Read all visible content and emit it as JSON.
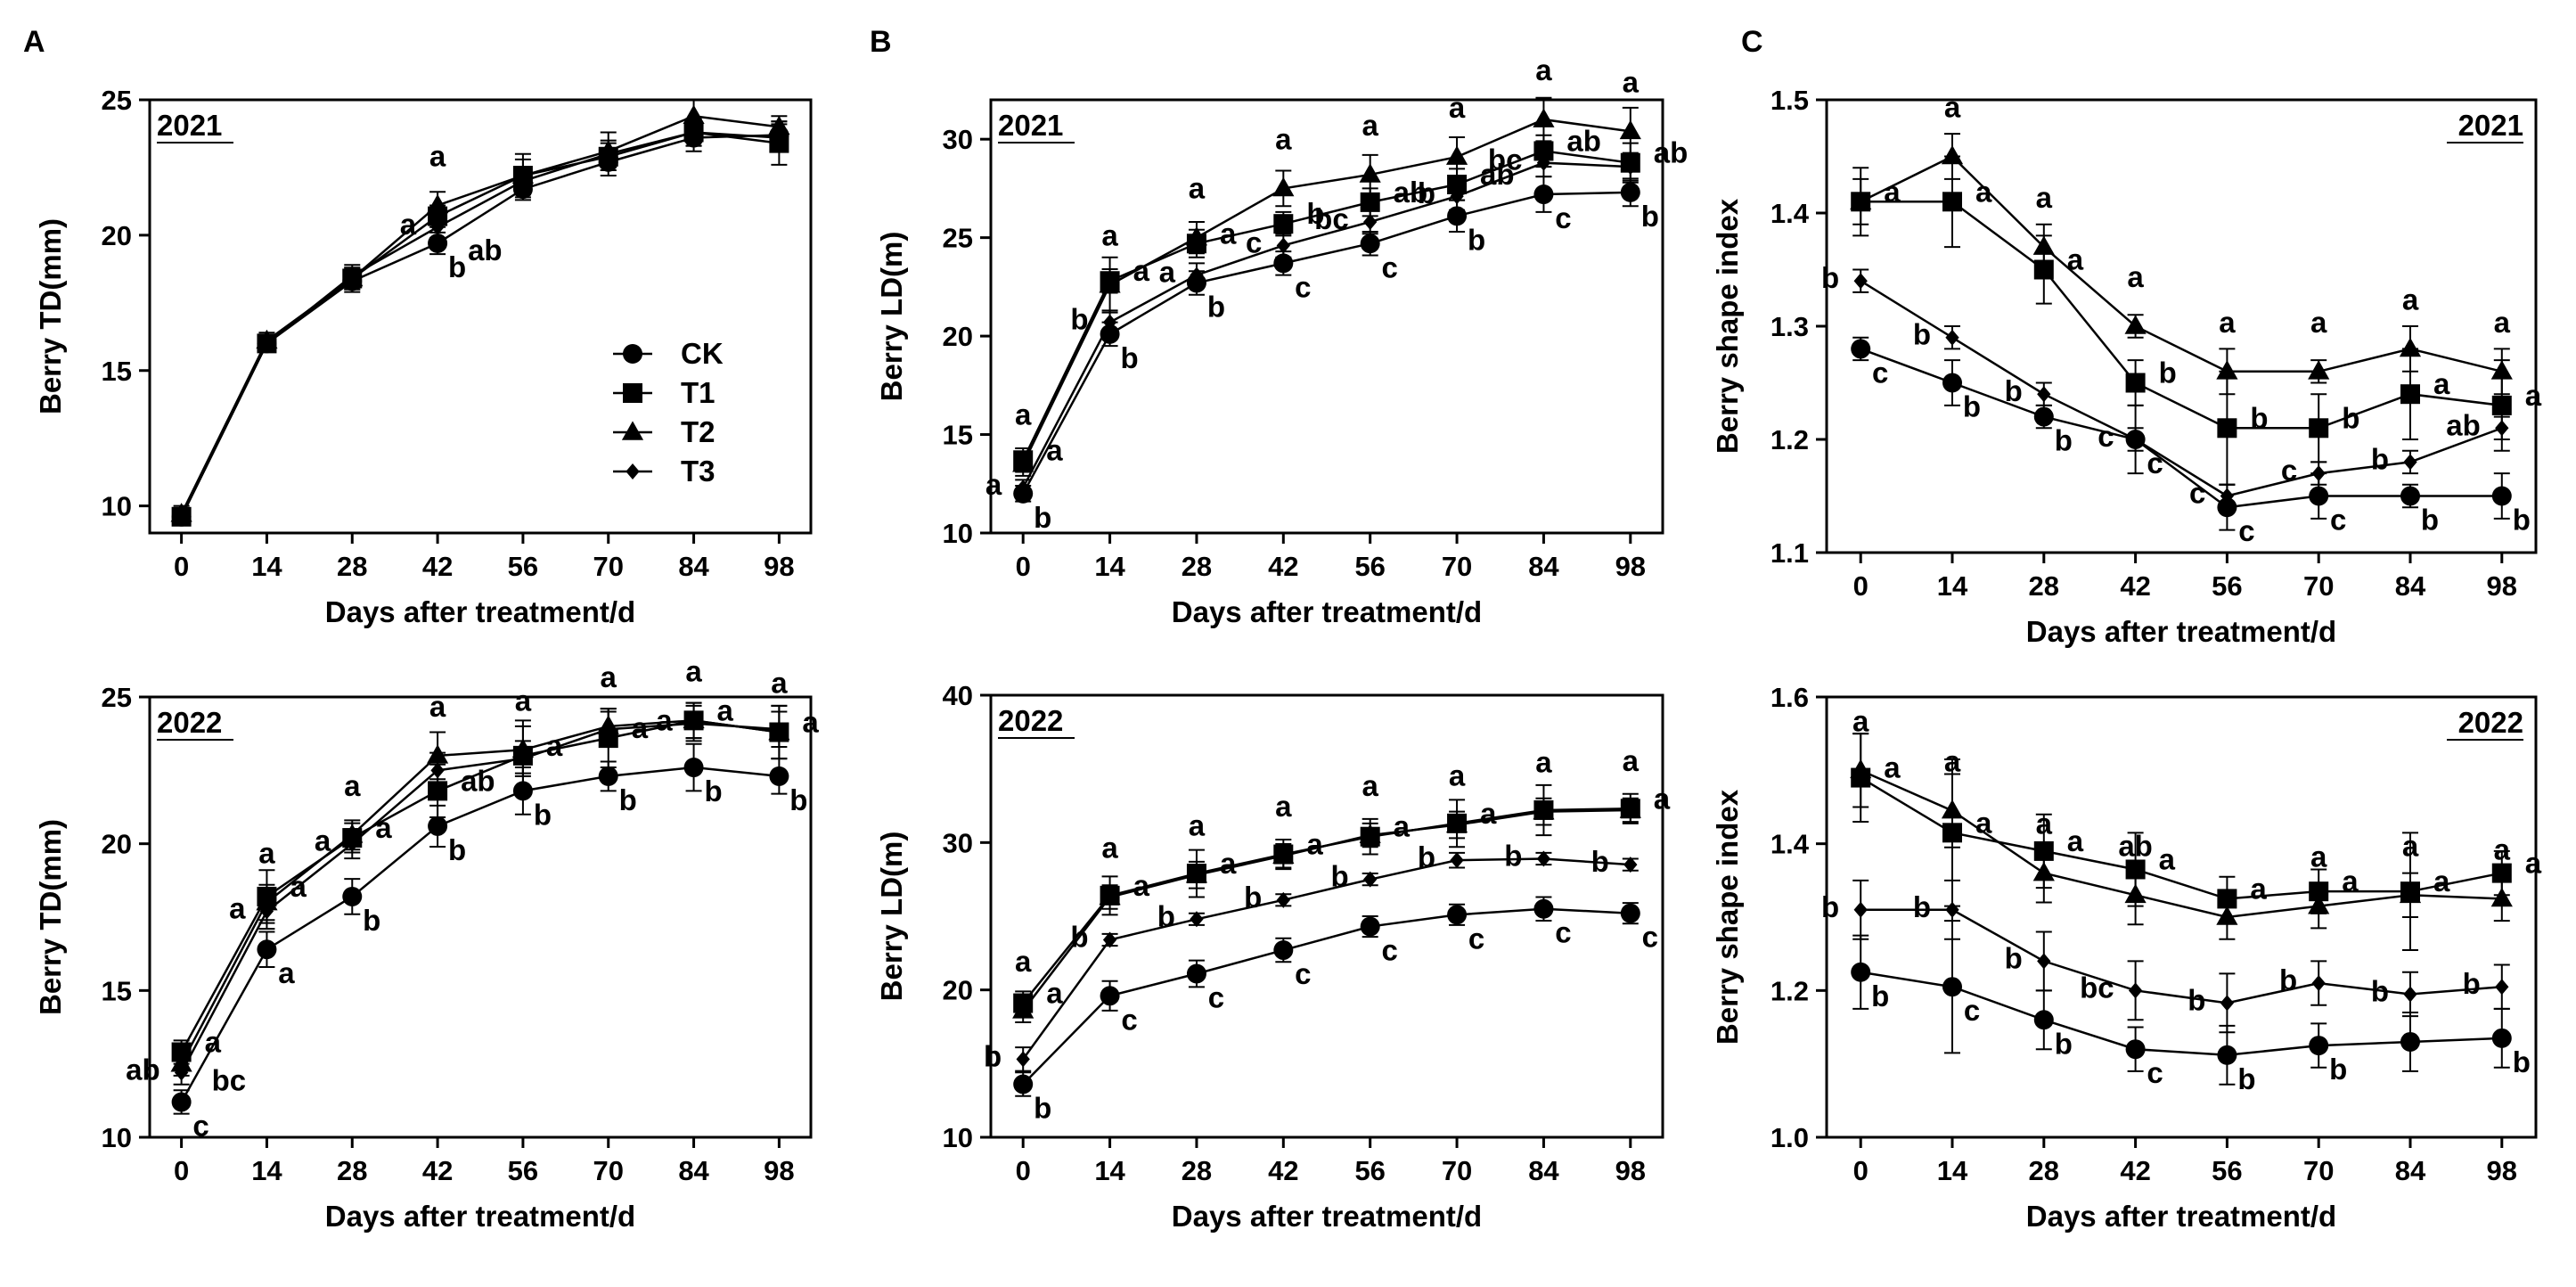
{
  "panel_labels": {
    "A": "A",
    "B": "B",
    "C": "C"
  },
  "legend": {
    "CK": {
      "label": "CK",
      "marker": "circle"
    },
    "T1": {
      "label": "T1",
      "marker": "square"
    },
    "T2": {
      "label": "T2",
      "marker": "triangle"
    },
    "T3": {
      "label": "T3",
      "marker": "diamond"
    }
  },
  "colors": {
    "ink": "#000000",
    "background": "#ffffff"
  },
  "chart_data": [
    {
      "id": "A2021",
      "panel": "A",
      "type": "line",
      "year_label": "2021",
      "xlabel": "Days after treatment/d",
      "ylabel": "Berry TD(mm)",
      "x": [
        0,
        14,
        28,
        42,
        56,
        70,
        84,
        98
      ],
      "ylim": [
        9,
        25
      ],
      "yticks": [
        10,
        15,
        20,
        25
      ],
      "show_legend": true,
      "legend_position": "center-right",
      "series": [
        {
          "name": "CK",
          "marker": "circle",
          "values": [
            9.6,
            16.0,
            18.3,
            19.7,
            21.7,
            22.7,
            23.6,
            23.7
          ],
          "errors": [
            0.3,
            0.3,
            0.4,
            0.4,
            0.4,
            0.5,
            0.5,
            0.5
          ],
          "letters": [
            "",
            "",
            "",
            "b",
            "",
            "",
            "",
            ""
          ]
        },
        {
          "name": "T1",
          "marker": "square",
          "values": [
            9.6,
            16.0,
            18.4,
            20.7,
            22.2,
            22.9,
            23.8,
            23.4
          ],
          "errors": [
            0.3,
            0.3,
            0.4,
            0.4,
            0.8,
            0.5,
            0.5,
            0.8
          ],
          "letters": [
            "",
            "",
            "",
            "",
            "",
            "",
            "",
            ""
          ]
        },
        {
          "name": "T2",
          "marker": "triangle",
          "values": [
            9.7,
            16.1,
            18.4,
            21.1,
            22.2,
            23.1,
            24.4,
            24.0
          ],
          "errors": [
            0.3,
            0.3,
            0.4,
            0.5,
            0.6,
            0.7,
            0.6,
            0.4
          ],
          "letters": [
            "",
            "",
            "",
            "a",
            "",
            "",
            "",
            ""
          ]
        },
        {
          "name": "T3",
          "marker": "diamond",
          "values": [
            9.6,
            16.0,
            18.5,
            20.3,
            22.0,
            23.0,
            23.8,
            23.6
          ],
          "errors": [
            0.3,
            0.3,
            0.4,
            0.4,
            0.5,
            0.5,
            0.5,
            0.5
          ],
          "letters": [
            "",
            "",
            "",
            "a",
            "",
            "",
            "",
            ""
          ]
        }
      ],
      "extra_labels": [
        {
          "text": "ab",
          "x": 42,
          "y": 19.4
        }
      ]
    },
    {
      "id": "A2022",
      "panel": "A",
      "type": "line",
      "year_label": "2022",
      "xlabel": "Days after treatment/d",
      "ylabel": "Berry TD(mm)",
      "x": [
        0,
        14,
        28,
        42,
        56,
        70,
        84,
        98
      ],
      "ylim": [
        10,
        25
      ],
      "yticks": [
        10,
        15,
        20,
        25
      ],
      "show_legend": false,
      "series": [
        {
          "name": "CK",
          "marker": "circle",
          "values": [
            11.2,
            16.4,
            18.2,
            20.6,
            21.8,
            22.3,
            22.6,
            22.3
          ],
          "errors": [
            0.4,
            0.6,
            0.6,
            0.7,
            0.8,
            0.5,
            0.8,
            0.6
          ],
          "letters": [
            "c",
            "a",
            "b",
            "b",
            "b",
            "b",
            "b",
            "b"
          ]
        },
        {
          "name": "T1",
          "marker": "square",
          "values": [
            12.9,
            18.2,
            20.2,
            21.8,
            23.0,
            23.6,
            24.2,
            23.8
          ],
          "errors": [
            0.4,
            0.9,
            0.5,
            0.9,
            1.2,
            1.0,
            0.6,
            0.9
          ],
          "letters": [
            "a",
            "a",
            "a",
            "ab",
            "a",
            "a",
            "a",
            "a"
          ]
        },
        {
          "name": "T2",
          "marker": "triangle",
          "values": [
            12.5,
            18.0,
            20.3,
            23.0,
            23.2,
            24.0,
            24.2,
            23.8
          ],
          "errors": [
            0.4,
            0.6,
            0.5,
            0.8,
            0.8,
            0.6,
            0.6,
            0.9
          ],
          "letters": [
            "",
            "a",
            "a",
            "a",
            "a",
            "a",
            "a",
            "a"
          ]
        },
        {
          "name": "T3",
          "marker": "diamond",
          "values": [
            12.2,
            17.7,
            20.0,
            22.5,
            22.9,
            23.9,
            24.1,
            23.9
          ],
          "errors": [
            0.4,
            0.6,
            0.5,
            0.6,
            0.6,
            0.6,
            0.6,
            0.6
          ],
          "letters": [
            "ab",
            "a",
            "a",
            "",
            "",
            "",
            "a",
            ""
          ]
        }
      ],
      "extra_labels": [
        {
          "text": "bc",
          "x": 0,
          "y": 11.9
        }
      ]
    },
    {
      "id": "B2021",
      "panel": "B",
      "type": "line",
      "year_label": "2021",
      "xlabel": "Days after treatment/d",
      "ylabel": "Berry LD(m)",
      "x": [
        0,
        14,
        28,
        42,
        56,
        70,
        84,
        98
      ],
      "ylim": [
        10,
        32
      ],
      "yticks": [
        10,
        15,
        20,
        25,
        30
      ],
      "show_legend": false,
      "series": [
        {
          "name": "CK",
          "marker": "circle",
          "values": [
            12.0,
            20.1,
            22.7,
            23.7,
            24.7,
            26.1,
            27.2,
            27.3
          ],
          "errors": [
            0.4,
            0.6,
            0.6,
            0.6,
            0.6,
            0.8,
            0.9,
            0.7
          ],
          "letters": [
            "b",
            "b",
            "b",
            "c",
            "c",
            "b",
            "c",
            "b"
          ]
        },
        {
          "name": "T1",
          "marker": "square",
          "values": [
            13.7,
            22.8,
            24.7,
            25.7,
            26.8,
            27.7,
            29.4,
            28.8
          ],
          "errors": [
            0.6,
            0.6,
            0.7,
            0.6,
            0.7,
            0.8,
            0.8,
            1.0
          ],
          "letters": [
            "a",
            "a",
            "a",
            "b",
            "ab",
            "ab",
            "ab",
            "ab"
          ]
        },
        {
          "name": "T2",
          "marker": "triangle",
          "values": [
            13.5,
            22.6,
            25.0,
            27.5,
            28.2,
            29.1,
            31.0,
            30.4
          ],
          "errors": [
            0.6,
            1.4,
            0.8,
            0.9,
            1.0,
            1.0,
            1.1,
            1.2
          ],
          "letters": [
            "a",
            "a",
            "a",
            "a",
            "a",
            "a",
            "a",
            "a"
          ]
        },
        {
          "name": "T3",
          "marker": "diamond",
          "values": [
            12.3,
            20.7,
            23.1,
            24.6,
            25.8,
            27.1,
            28.8,
            28.6
          ],
          "errors": [
            0.4,
            0.6,
            0.6,
            0.6,
            0.6,
            0.7,
            0.7,
            0.7
          ],
          "letters": [
            "a",
            "b",
            "a",
            "c",
            "bc",
            "b",
            "bc",
            ""
          ]
        }
      ],
      "extra_labels": []
    },
    {
      "id": "B2022",
      "panel": "B",
      "type": "line",
      "year_label": "2022",
      "xlabel": "Days after treatment/d",
      "ylabel": "Berry LD(m)",
      "x": [
        0,
        14,
        28,
        42,
        56,
        70,
        84,
        98
      ],
      "ylim": [
        10,
        40
      ],
      "yticks": [
        10,
        20,
        30,
        40
      ],
      "show_legend": false,
      "series": [
        {
          "name": "CK",
          "marker": "circle",
          "values": [
            13.6,
            19.6,
            21.1,
            22.7,
            24.3,
            25.1,
            25.5,
            25.2
          ],
          "errors": [
            0.8,
            1.0,
            0.9,
            0.8,
            0.7,
            0.7,
            0.8,
            0.7
          ],
          "letters": [
            "b",
            "c",
            "c",
            "c",
            "c",
            "c",
            "c",
            "c"
          ]
        },
        {
          "name": "T1",
          "marker": "square",
          "values": [
            19.1,
            26.4,
            27.9,
            29.2,
            30.4,
            31.3,
            32.2,
            32.3
          ],
          "errors": [
            0.8,
            1.3,
            1.6,
            1.0,
            1.2,
            1.6,
            1.7,
            1.0
          ],
          "letters": [
            "a",
            "a",
            "a",
            "a",
            "a",
            "a",
            "",
            "a"
          ]
        },
        {
          "name": "T2",
          "marker": "triangle",
          "values": [
            18.6,
            26.3,
            27.8,
            29.1,
            30.5,
            31.2,
            32.1,
            32.2
          ],
          "errors": [
            0.8,
            0.8,
            0.9,
            0.8,
            0.8,
            0.9,
            0.9,
            0.8
          ],
          "letters": [
            "a",
            "a",
            "a",
            "a",
            "a",
            "a",
            "a",
            "a"
          ]
        },
        {
          "name": "T3",
          "marker": "diamond",
          "values": [
            15.3,
            23.4,
            24.8,
            26.1,
            27.5,
            28.8,
            28.9,
            28.5
          ],
          "errors": [
            0.8,
            0.4,
            0.4,
            0.4,
            0.4,
            0.5,
            0.4,
            0.4
          ],
          "letters": [
            "b",
            "b",
            "b",
            "b",
            "b",
            "b",
            "b",
            "b"
          ]
        }
      ],
      "extra_labels": []
    },
    {
      "id": "C2021",
      "panel": "C",
      "type": "line",
      "year_label": "2021",
      "xlabel": "Days after treatment/d",
      "ylabel": "Berry shape index",
      "x": [
        0,
        14,
        28,
        42,
        56,
        70,
        84,
        98
      ],
      "ylim": [
        1.1,
        1.5
      ],
      "yticks": [
        1.1,
        1.2,
        1.3,
        1.4,
        1.5
      ],
      "show_legend": false,
      "series": [
        {
          "name": "CK",
          "marker": "circle",
          "values": [
            1.28,
            1.25,
            1.22,
            1.2,
            1.14,
            1.15,
            1.15,
            1.15
          ],
          "errors": [
            0.01,
            0.02,
            0.01,
            0.03,
            0.02,
            0.02,
            0.01,
            0.02
          ],
          "letters": [
            "c",
            "b",
            "b",
            "c",
            "c",
            "c",
            "b",
            "b"
          ]
        },
        {
          "name": "T1",
          "marker": "square",
          "values": [
            1.41,
            1.41,
            1.35,
            1.25,
            1.21,
            1.21,
            1.24,
            1.23
          ],
          "errors": [
            0.03,
            0.04,
            0.03,
            0.02,
            0.05,
            0.03,
            0.04,
            0.04
          ],
          "letters": [
            "a",
            "a",
            "a",
            "b",
            "b",
            "b",
            "a",
            "a"
          ]
        },
        {
          "name": "T2",
          "marker": "triangle",
          "values": [
            1.41,
            1.45,
            1.37,
            1.3,
            1.26,
            1.26,
            1.28,
            1.26
          ],
          "errors": [
            0.02,
            0.02,
            0.02,
            0.01,
            0.02,
            0.01,
            0.02,
            0.02
          ],
          "letters": [
            "",
            "a",
            "a",
            "a",
            "a",
            "a",
            "a",
            "a"
          ]
        },
        {
          "name": "T3",
          "marker": "diamond",
          "values": [
            1.34,
            1.29,
            1.24,
            1.2,
            1.15,
            1.17,
            1.18,
            1.21
          ],
          "errors": [
            0.01,
            0.01,
            0.01,
            0.01,
            0.01,
            0.01,
            0.01,
            0.01
          ],
          "letters": [
            "b",
            "b",
            "b",
            "c",
            "c",
            "c",
            "b",
            "ab"
          ]
        }
      ],
      "extra_labels": []
    },
    {
      "id": "C2022",
      "panel": "C",
      "type": "line",
      "year_label": "2022",
      "xlabel": "Days after treatment/d",
      "ylabel": "Berry shape index",
      "x": [
        0,
        14,
        28,
        42,
        56,
        70,
        84,
        98
      ],
      "ylim": [
        1.0,
        1.6
      ],
      "yticks": [
        1.0,
        1.2,
        1.4,
        1.6
      ],
      "show_legend": false,
      "series": [
        {
          "name": "CK",
          "marker": "circle",
          "values": [
            1.225,
            1.205,
            1.16,
            1.12,
            1.112,
            1.125,
            1.13,
            1.135
          ],
          "errors": [
            0.05,
            0.09,
            0.04,
            0.03,
            0.04,
            0.03,
            0.04,
            0.04
          ],
          "letters": [
            "b",
            "c",
            "b",
            "c",
            "b",
            "b",
            "",
            "b"
          ]
        },
        {
          "name": "T1",
          "marker": "square",
          "values": [
            1.49,
            1.415,
            1.39,
            1.365,
            1.325,
            1.335,
            1.335,
            1.36
          ],
          "errors": [
            0.06,
            0.1,
            0.05,
            0.05,
            0.03,
            0.03,
            0.08,
            0.03
          ],
          "letters": [
            "a",
            "a",
            "a",
            "a",
            "a",
            "a",
            "a",
            "a"
          ]
        },
        {
          "name": "T2",
          "marker": "triangle",
          "values": [
            1.5,
            1.445,
            1.36,
            1.33,
            1.3,
            1.315,
            1.33,
            1.325
          ],
          "errors": [
            0.05,
            0.05,
            0.04,
            0.04,
            0.03,
            0.03,
            0.03,
            0.03
          ],
          "letters": [
            "a",
            "a",
            "a",
            "ab",
            "",
            "a",
            "a",
            "a"
          ]
        },
        {
          "name": "T3",
          "marker": "diamond",
          "values": [
            1.31,
            1.31,
            1.24,
            1.2,
            1.183,
            1.21,
            1.195,
            1.205
          ],
          "errors": [
            0.04,
            0.04,
            0.04,
            0.04,
            0.04,
            0.03,
            0.03,
            0.03
          ],
          "letters": [
            "b",
            "b",
            "b",
            "bc",
            "b",
            "b",
            "b",
            "b"
          ]
        }
      ],
      "extra_labels": []
    }
  ]
}
